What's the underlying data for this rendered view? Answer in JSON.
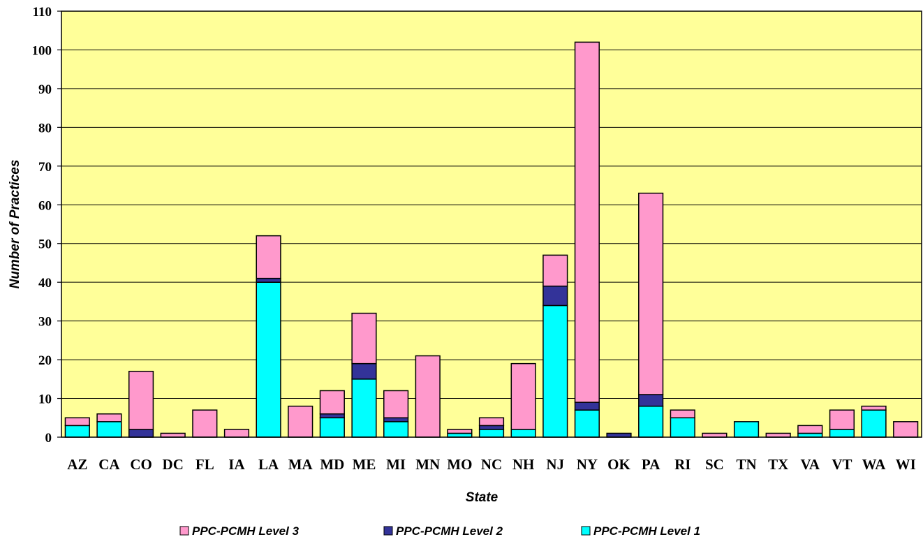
{
  "chart_data": {
    "type": "bar",
    "stacked": true,
    "title": "",
    "xlabel": "State",
    "ylabel": "Number of Practices",
    "ylim": [
      0,
      110
    ],
    "yticks": [
      0,
      10,
      20,
      30,
      40,
      50,
      60,
      70,
      80,
      90,
      100,
      110
    ],
    "grid": true,
    "legend_position": "bottom",
    "categories": [
      "AZ",
      "CA",
      "CO",
      "DC",
      "FL",
      "IA",
      "LA",
      "MA",
      "MD",
      "ME",
      "MI",
      "MN",
      "MO",
      "NC",
      "NH",
      "NJ",
      "NY",
      "OK",
      "PA",
      "RI",
      "SC",
      "TN",
      "TX",
      "VA",
      "VT",
      "WA",
      "WI"
    ],
    "series": [
      {
        "name": "PPC-PCMH Level 1",
        "color": "#00FFFF",
        "values": [
          3,
          4,
          0,
          0,
          0,
          0,
          40,
          0,
          5,
          15,
          4,
          0,
          1,
          2,
          2,
          34,
          7,
          0,
          8,
          5,
          0,
          4,
          0,
          1,
          2,
          7,
          0
        ]
      },
      {
        "name": "PPC-PCMH Level 2",
        "color": "#333399",
        "values": [
          0,
          0,
          2,
          0,
          0,
          0,
          1,
          0,
          1,
          4,
          1,
          0,
          0,
          1,
          0,
          5,
          2,
          1,
          3,
          0,
          0,
          0,
          0,
          0,
          0,
          0,
          0
        ]
      },
      {
        "name": "PPC-PCMH Level 3",
        "color": "#FF99CC",
        "values": [
          2,
          2,
          15,
          1,
          7,
          2,
          11,
          8,
          6,
          13,
          7,
          21,
          1,
          2,
          17,
          8,
          93,
          0,
          52,
          2,
          1,
          0,
          1,
          2,
          5,
          1,
          4
        ]
      }
    ],
    "legend_order": [
      2,
      1,
      0
    ],
    "plot_background": "#FFFF99"
  }
}
